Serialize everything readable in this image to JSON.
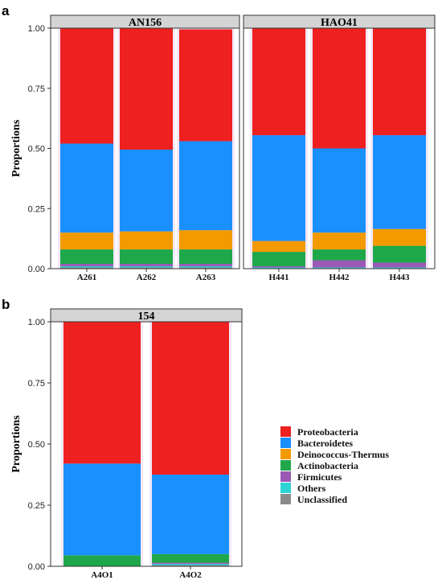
{
  "panel_labels": {
    "a": "a",
    "b": "b"
  },
  "colors": {
    "Proteobacteria": "#ee2020",
    "Bacteroidetes": "#1a90ff",
    "Deinococcus-Thermus": "#f39a00",
    "Actinobacteria": "#1ea84a",
    "Firmicutes": "#9b59b6",
    "Others": "#2ed3d6",
    "Unclassified": "#8a8a8a"
  },
  "legend": [
    "Proteobacteria",
    "Bacteroidetes",
    "Deinococcus-Thermus",
    "Actinobacteria",
    "Firmicutes",
    "Others",
    "Unclassified"
  ],
  "chart_data": [
    {
      "type": "bar",
      "stacked": true,
      "facets": [
        {
          "name": "AN156",
          "categories": [
            "A261",
            "A262",
            "A263"
          ],
          "series": [
            {
              "name": "Unclassified",
              "values": [
                0.005,
                0.005,
                0.005
              ]
            },
            {
              "name": "Others",
              "values": [
                0.005,
                0.005,
                0.005
              ]
            },
            {
              "name": "Firmicutes",
              "values": [
                0.01,
                0.01,
                0.01
              ]
            },
            {
              "name": "Actinobacteria",
              "values": [
                0.06,
                0.06,
                0.06
              ]
            },
            {
              "name": "Deinococcus-Thermus",
              "values": [
                0.07,
                0.075,
                0.08
              ]
            },
            {
              "name": "Bacteroidetes",
              "values": [
                0.37,
                0.34,
                0.37
              ]
            },
            {
              "name": "Proteobacteria",
              "values": [
                0.48,
                0.505,
                0.465
              ]
            }
          ]
        },
        {
          "name": "HAO41",
          "categories": [
            "H441",
            "H442",
            "H443"
          ],
          "series": [
            {
              "name": "Unclassified",
              "values": [
                0.0,
                0.0,
                0.0
              ]
            },
            {
              "name": "Others",
              "values": [
                0.005,
                0.005,
                0.005
              ]
            },
            {
              "name": "Firmicutes",
              "values": [
                0.005,
                0.03,
                0.02
              ]
            },
            {
              "name": "Actinobacteria",
              "values": [
                0.06,
                0.045,
                0.07
              ]
            },
            {
              "name": "Deinococcus-Thermus",
              "values": [
                0.045,
                0.07,
                0.07
              ]
            },
            {
              "name": "Bacteroidetes",
              "values": [
                0.44,
                0.35,
                0.39
              ]
            },
            {
              "name": "Proteobacteria",
              "values": [
                0.445,
                0.5,
                0.445
              ]
            }
          ]
        }
      ],
      "ylabel": "Proportions",
      "ylim": [
        0,
        1
      ],
      "yticks": [
        "0.00",
        "0.25",
        "0.50",
        "0.75",
        "1.00"
      ]
    },
    {
      "type": "bar",
      "stacked": true,
      "facets": [
        {
          "name": "154",
          "categories": [
            "A4O1",
            "A4O2"
          ],
          "series": [
            {
              "name": "Unclassified",
              "values": [
                0.0,
                0.005
              ]
            },
            {
              "name": "Others",
              "values": [
                0.0,
                0.005
              ]
            },
            {
              "name": "Firmicutes",
              "values": [
                0.0,
                0.005
              ]
            },
            {
              "name": "Actinobacteria",
              "values": [
                0.045,
                0.035
              ]
            },
            {
              "name": "Deinococcus-Thermus",
              "values": [
                0.0,
                0.0
              ]
            },
            {
              "name": "Bacteroidetes",
              "values": [
                0.375,
                0.325
              ]
            },
            {
              "name": "Proteobacteria",
              "values": [
                0.58,
                0.625
              ]
            }
          ]
        }
      ],
      "ylabel": "Proportions",
      "ylim": [
        0,
        1
      ],
      "yticks": [
        "0.00",
        "0.25",
        "0.50",
        "0.75",
        "1.00"
      ]
    }
  ]
}
